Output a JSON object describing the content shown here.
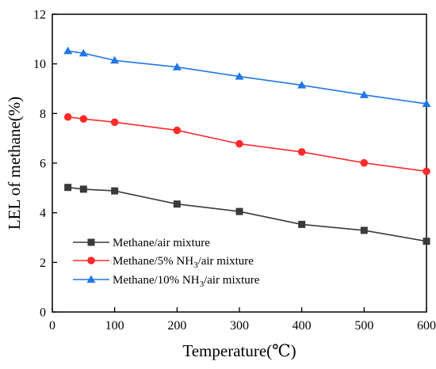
{
  "chart_data": {
    "type": "line",
    "title": "",
    "xlabel": "Temperature(℃)",
    "ylabel": "LEL of methane(%)",
    "xlim": [
      0,
      600
    ],
    "ylim": [
      0,
      12
    ],
    "x_ticks": [
      0,
      100,
      200,
      300,
      400,
      500,
      600
    ],
    "y_ticks": [
      0,
      2,
      4,
      6,
      8,
      10,
      12
    ],
    "grid": false,
    "legend_position": "bottom-left",
    "series": [
      {
        "name": "Methane/air mixture",
        "color": "#3a3a3a",
        "marker": "square",
        "x": [
          25,
          50,
          100,
          200,
          300,
          400,
          500,
          600
        ],
        "y": [
          5.02,
          4.95,
          4.88,
          4.35,
          4.05,
          3.53,
          3.29,
          2.85
        ]
      },
      {
        "name": "Methane/5% NH3/air mixture",
        "legend_parts": [
          "Methane/5% NH",
          "3",
          "/air mixture"
        ],
        "color": "#ff2a2a",
        "marker": "circle",
        "x": [
          25,
          50,
          100,
          200,
          300,
          400,
          500,
          600
        ],
        "y": [
          7.86,
          7.78,
          7.65,
          7.32,
          6.78,
          6.45,
          6.01,
          5.67
        ]
      },
      {
        "name": "Methane/10% NH3/air mixture",
        "legend_parts": [
          "Methane/10% NH",
          "3",
          "/air mixture"
        ],
        "color": "#1f77e8",
        "marker": "triangle",
        "x": [
          25,
          50,
          100,
          200,
          300,
          400,
          500,
          600
        ],
        "y": [
          10.52,
          10.43,
          10.14,
          9.87,
          9.49,
          9.14,
          8.75,
          8.39
        ]
      }
    ]
  }
}
